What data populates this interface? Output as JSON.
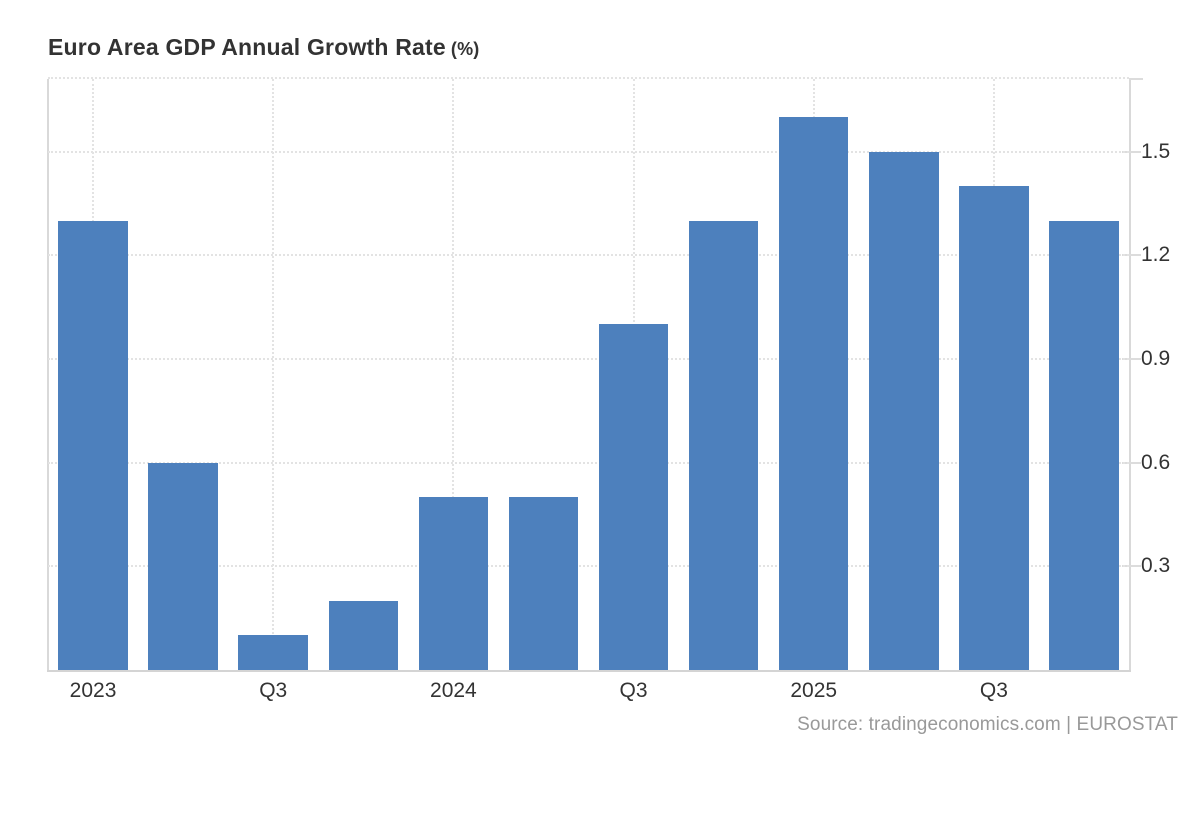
{
  "header": {
    "title": "Euro Area GDP Annual Growth Rate",
    "unit": "(%)"
  },
  "footer": {
    "source": "Source: tradingeconomics.com | EUROSTAT"
  },
  "colors": {
    "bar": "#4d80bd",
    "axis_text": "#333333",
    "grid_line": "#e3e3e3",
    "axis_line": "#d9d9d9",
    "source_text": "#999999"
  },
  "chart_data": {
    "type": "bar",
    "title": "Euro Area GDP Annual Growth Rate (%)",
    "xlabel": "",
    "ylabel": "",
    "unit": "%",
    "values": [
      1.3,
      0.6,
      0.1,
      0.2,
      0.5,
      0.5,
      1.0,
      1.3,
      1.6,
      1.5,
      1.4,
      1.3
    ],
    "x_tick_labels": [
      "2023",
      "Q3",
      "2024",
      "Q3",
      "2025",
      "Q3"
    ],
    "x_tick_bar_indices": [
      0,
      2,
      4,
      6,
      8,
      10
    ],
    "y_ticks": [
      0.3,
      0.6,
      0.9,
      1.2,
      1.5
    ],
    "ylim": [
      0,
      1.71
    ],
    "grid": "dotted",
    "legend": "none",
    "source": "Source: tradingeconomics.com | EUROSTAT"
  }
}
